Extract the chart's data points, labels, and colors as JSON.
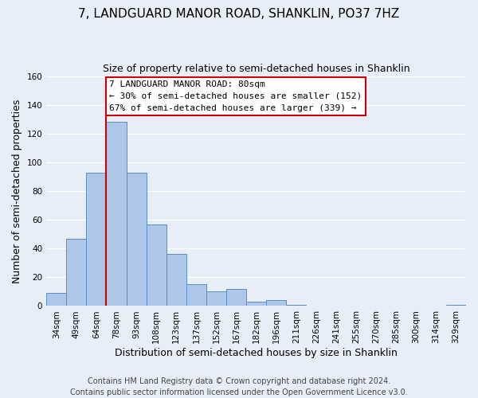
{
  "title_line1": "7, LANDGUARD MANOR ROAD, SHANKLIN, PO37 7HZ",
  "title_line2": "Size of property relative to semi-detached houses in Shanklin",
  "xlabel": "Distribution of semi-detached houses by size in Shanklin",
  "ylabel": "Number of semi-detached properties",
  "bar_labels": [
    "34sqm",
    "49sqm",
    "64sqm",
    "78sqm",
    "93sqm",
    "108sqm",
    "123sqm",
    "137sqm",
    "152sqm",
    "167sqm",
    "182sqm",
    "196sqm",
    "211sqm",
    "226sqm",
    "241sqm",
    "255sqm",
    "270sqm",
    "285sqm",
    "300sqm",
    "314sqm",
    "329sqm"
  ],
  "bar_values": [
    9,
    47,
    93,
    128,
    93,
    57,
    36,
    15,
    10,
    12,
    3,
    4,
    1,
    0,
    0,
    0,
    0,
    0,
    0,
    0,
    1
  ],
  "bar_color": "#aec6e8",
  "bar_edge_color": "#5a8fc2",
  "highlight_bar_index": 3,
  "highlight_line_color": "#cc0000",
  "annotation_title": "7 LANDGUARD MANOR ROAD: 80sqm",
  "annotation_line2": "← 30% of semi-detached houses are smaller (152)",
  "annotation_line3": "67% of semi-detached houses are larger (339) →",
  "annotation_box_color": "#ffffff",
  "annotation_box_edge_color": "#cc0000",
  "ylim": [
    0,
    160
  ],
  "yticks": [
    0,
    20,
    40,
    60,
    80,
    100,
    120,
    140,
    160
  ],
  "footer_line1": "Contains HM Land Registry data © Crown copyright and database right 2024.",
  "footer_line2": "Contains public sector information licensed under the Open Government Licence v3.0.",
  "background_color": "#e8eef8",
  "plot_bg_color": "#e8eef8",
  "grid_color": "#ffffff",
  "title_fontsize": 11,
  "subtitle_fontsize": 9,
  "axis_label_fontsize": 9,
  "tick_fontsize": 7.5,
  "footer_fontsize": 7,
  "annotation_fontsize": 8
}
